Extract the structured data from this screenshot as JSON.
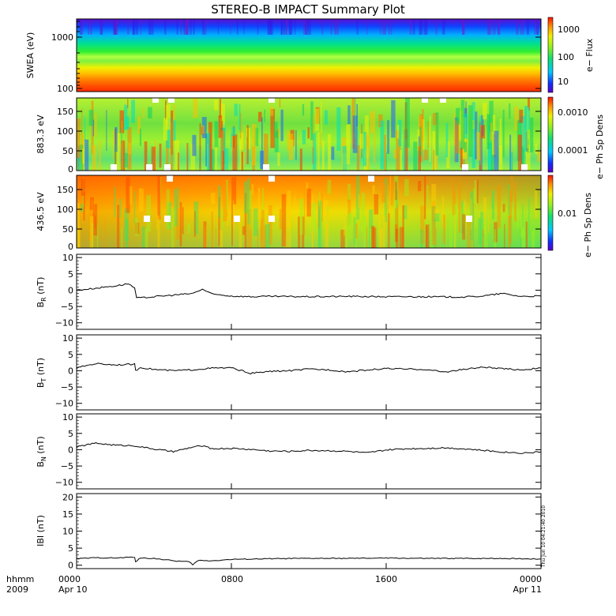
{
  "title": "STEREO-B IMPACT Summary Plot",
  "footer": {
    "time_caption": "hhmm",
    "year": "2009",
    "time_ticks": [
      "0000",
      "0800",
      "1600",
      "0000"
    ],
    "date_ticks": [
      "Apr 10",
      "",
      "",
      "Apr 11"
    ],
    "stamp": "Thu Jun 10 04:21:40 2010"
  },
  "panels": {
    "swea": {
      "ylabel": "SWEA (eV)",
      "yticks": [
        "1000",
        "100"
      ],
      "cblabel": "e− Flux",
      "cbticks": [
        "1000",
        "100",
        "10"
      ]
    },
    "pad883": {
      "ylabel": "883.3 eV",
      "yticks": [
        "150",
        "100",
        "50",
        "0"
      ],
      "cblabel": "e− Ph Sp Dens",
      "cbticks": [
        "0.0010",
        "0.0001"
      ]
    },
    "pad436": {
      "ylabel": "436.5 eV",
      "yticks": [
        "150",
        "100",
        "50",
        "0"
      ],
      "cblabel": "e− Ph Sp Dens",
      "cbticks": [
        "0.01"
      ]
    },
    "br": {
      "ylabel": "B",
      "sub": "R",
      "unit": " (nT)",
      "yticks": [
        "10",
        "5",
        "0",
        "−5",
        "−10"
      ]
    },
    "bt": {
      "ylabel": "B",
      "sub": "T",
      "unit": " (nT)",
      "yticks": [
        "10",
        "5",
        "0",
        "−5",
        "−10"
      ]
    },
    "bn": {
      "ylabel": "B",
      "sub": "N",
      "unit": " (nT)",
      "yticks": [
        "10",
        "5",
        "0",
        "−5",
        "−10"
      ]
    },
    "bmag": {
      "ylabel": "IBI (nT)",
      "yticks": [
        "20",
        "15",
        "10",
        "5",
        "0"
      ]
    }
  },
  "chart_data": [
    {
      "type": "heatmap",
      "title": "STEREO-B IMPACT Summary Plot",
      "ylabel": "SWEA (eV)",
      "yscale": "log",
      "ylim": [
        90,
        2000
      ],
      "colorbar_label": "e− Flux",
      "colorbar_scale": "log",
      "colorbar_range": [
        3,
        3000
      ],
      "x": [
        "0000",
        "0800",
        "1600",
        "0000"
      ],
      "profile_energy_eV": [
        100,
        150,
        200,
        300,
        500,
        800,
        1000,
        1500,
        2000
      ],
      "profile_flux": [
        2500,
        1200,
        800,
        300,
        100,
        30,
        12,
        6,
        4
      ]
    },
    {
      "type": "heatmap",
      "ylabel": "883.3 eV",
      "ylim": [
        0,
        180
      ],
      "colorbar_label": "e− Ph Sp Dens",
      "colorbar_scale": "log",
      "colorbar_range": [
        3e-05,
        0.0025
      ],
      "x": [
        "0000",
        "0800",
        "1600",
        "0000"
      ]
    },
    {
      "type": "heatmap",
      "ylabel": "436.5 eV",
      "ylim": [
        0,
        180
      ],
      "colorbar_label": "e− Ph Sp Dens",
      "colorbar_scale": "log",
      "colorbar_range": [
        0.002,
        0.04
      ],
      "x": [
        "0000",
        "0800",
        "1600",
        "0000"
      ]
    },
    {
      "type": "line",
      "ylabel": "B_R (nT)",
      "ylim": [
        -12,
        11
      ],
      "xlim": [
        0,
        24
      ],
      "xunit": "hours from 2009 Apr 10 0000",
      "x": [
        0,
        0.5,
        1,
        1.5,
        2,
        2.3,
        2.7,
        3.0,
        3.1,
        3.3,
        4,
        5,
        6,
        6.5,
        7,
        8,
        9,
        10,
        12,
        14,
        16,
        18,
        20,
        21,
        22,
        22.5,
        23,
        24
      ],
      "y": [
        0,
        0.3,
        0.6,
        1.0,
        1.3,
        1.6,
        2.0,
        0.5,
        -2.3,
        -2.4,
        -2.0,
        -1.5,
        -1.0,
        0.3,
        -1.2,
        -1.8,
        -2.0,
        -1.9,
        -2.0,
        -1.9,
        -2.0,
        -2.0,
        -2.1,
        -1.8,
        -1.0,
        -1.5,
        -1.9,
        -1.8
      ]
    },
    {
      "type": "line",
      "ylabel": "B_T (nT)",
      "ylim": [
        -12,
        11
      ],
      "xlim": [
        0,
        24
      ],
      "x": [
        0,
        0.5,
        1,
        2,
        3,
        3.05,
        3.3,
        4,
        5,
        6,
        7,
        8,
        9,
        10,
        11,
        12,
        13,
        14,
        15,
        16,
        17,
        18,
        19,
        20,
        21,
        22,
        23,
        24
      ],
      "y": [
        0.8,
        1.6,
        2.2,
        1.8,
        2.0,
        0,
        1.0,
        0.4,
        0,
        0.3,
        0.8,
        0.9,
        -0.8,
        -0.2,
        0,
        0.5,
        0.3,
        -0.3,
        0.2,
        0.7,
        0.5,
        0.4,
        -0.4,
        0.4,
        1.1,
        0.6,
        0.3,
        0.8
      ]
    },
    {
      "type": "line",
      "ylabel": "B_N (nT)",
      "ylim": [
        -12,
        11
      ],
      "xlim": [
        0,
        24
      ],
      "x": [
        0,
        0.5,
        1,
        2,
        3,
        4,
        5,
        6,
        6.5,
        7,
        8,
        9,
        10,
        11,
        12,
        13,
        14,
        15,
        16,
        17,
        18,
        19,
        20,
        21,
        22,
        23,
        24
      ],
      "y": [
        0.8,
        1.5,
        2.0,
        1.4,
        1.2,
        0.2,
        -0.6,
        0.8,
        1.2,
        0.3,
        0.4,
        0.1,
        -0.4,
        -0.5,
        -0.2,
        -0.3,
        -0.5,
        -1.0,
        -0.1,
        0.3,
        0.4,
        0.6,
        0.3,
        -0.2,
        -0.7,
        -1.0,
        -0.7
      ]
    },
    {
      "type": "line",
      "ylabel": "IBI (nT)",
      "ylim": [
        -1,
        21
      ],
      "xlim": [
        0,
        24
      ],
      "x": [
        0,
        1,
        2,
        3,
        3.05,
        3.3,
        4,
        5,
        5.8,
        6.0,
        6.3,
        7,
        8,
        9,
        10,
        12,
        14,
        16,
        18,
        20,
        22,
        24
      ],
      "y": [
        1.9,
        2.2,
        2.1,
        2.4,
        1.0,
        2.1,
        2.0,
        1.3,
        1.0,
        0.2,
        1.4,
        1.3,
        1.7,
        1.8,
        1.9,
        2.0,
        2.0,
        2.1,
        2.0,
        2.0,
        2.0,
        1.8
      ]
    }
  ]
}
